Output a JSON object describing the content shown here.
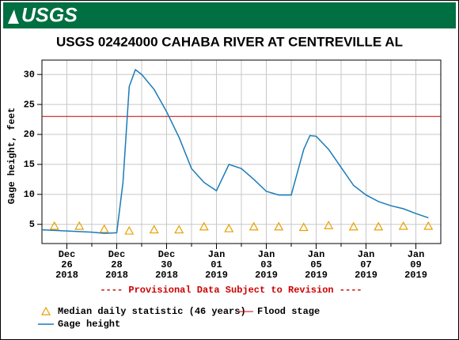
{
  "logo": "USGS",
  "chart_data": {
    "type": "line",
    "title": "USGS 02424000 CAHABA RIVER AT CENTREVILLE AL",
    "y_label": "Gage height, feet",
    "annotation": "---- Provisional Data Subject to Revision ----",
    "xlim": [
      "2018-12-25",
      "2019-01-10"
    ],
    "ylim": [
      1.8,
      32.4
    ],
    "yticks": [
      5,
      10,
      15,
      20,
      25,
      30
    ],
    "xticks": [
      {
        "value": "2018-12-26",
        "label": [
          "Dec",
          "26",
          "2018"
        ]
      },
      {
        "value": "2018-12-28",
        "label": [
          "Dec",
          "28",
          "2018"
        ]
      },
      {
        "value": "2018-12-30",
        "label": [
          "Dec",
          "30",
          "2018"
        ]
      },
      {
        "value": "2019-01-01",
        "label": [
          "Jan",
          "01",
          "2019"
        ]
      },
      {
        "value": "2019-01-03",
        "label": [
          "Jan",
          "03",
          "2019"
        ]
      },
      {
        "value": "2019-01-05",
        "label": [
          "Jan",
          "05",
          "2019"
        ]
      },
      {
        "value": "2019-01-07",
        "label": [
          "Jan",
          "07",
          "2019"
        ]
      },
      {
        "value": "2019-01-09",
        "label": [
          "Jan",
          "09",
          "2019"
        ]
      }
    ],
    "x_minor_grid": [
      "2018-12-27",
      "2018-12-29",
      "2018-12-31",
      "2019-01-02",
      "2019-01-04",
      "2019-01-06",
      "2019-01-08"
    ],
    "grid": true,
    "series": [
      {
        "name": "Median daily statistic (46 years)",
        "type": "scatter",
        "marker": "triangle",
        "color": "#e8a000",
        "x": [
          "2018-12-25 12:00",
          "2018-12-26 12:00",
          "2018-12-27 12:00",
          "2018-12-28 12:00",
          "2018-12-29 12:00",
          "2018-12-30 12:00",
          "2018-12-31 12:00",
          "2019-01-01 12:00",
          "2019-01-02 12:00",
          "2019-01-03 12:00",
          "2019-01-04 12:00",
          "2019-01-05 12:00",
          "2019-01-06 12:00",
          "2019-01-07 12:00",
          "2019-01-08 12:00",
          "2019-01-09 12:00"
        ],
        "values": [
          4.7,
          4.7,
          4.2,
          3.9,
          4.1,
          4.1,
          4.6,
          4.3,
          4.6,
          4.6,
          4.5,
          4.8,
          4.6,
          4.6,
          4.7,
          4.7
        ]
      },
      {
        "name": "Flood stage",
        "type": "hline",
        "color": "#cc0000",
        "values": [
          23
        ]
      },
      {
        "name": "Gage height",
        "type": "line",
        "color": "#1a7bb9",
        "x": [
          "2018-12-25 00:00",
          "2018-12-26 00:00",
          "2018-12-27 00:00",
          "2018-12-27 12:00",
          "2018-12-28 00:00",
          "2018-12-28 06:00",
          "2018-12-28 12:00",
          "2018-12-28 18:00",
          "2018-12-29 00:00",
          "2018-12-29 12:00",
          "2018-12-30 00:00",
          "2018-12-30 12:00",
          "2018-12-31 00:00",
          "2018-12-31 12:00",
          "2019-01-01 00:00",
          "2019-01-01 12:00",
          "2019-01-02 00:00",
          "2019-01-02 12:00",
          "2019-01-03 00:00",
          "2019-01-03 12:00",
          "2019-01-04 00:00",
          "2019-01-04 12:00",
          "2019-01-04 18:00",
          "2019-01-05 00:00",
          "2019-01-05 12:00",
          "2019-01-06 00:00",
          "2019-01-06 12:00",
          "2019-01-07 00:00",
          "2019-01-07 12:00",
          "2019-01-08 00:00",
          "2019-01-08 12:00",
          "2019-01-09 00:00",
          "2019-01-09 12:00"
        ],
        "values": [
          4.1,
          3.9,
          3.7,
          3.5,
          3.6,
          12,
          28,
          30.8,
          30.0,
          27.5,
          23.8,
          19.5,
          14.3,
          12,
          10.6,
          15.0,
          14.3,
          12.5,
          10.5,
          9.9,
          9.9,
          17.5,
          19.8,
          19.7,
          17.5,
          14.5,
          11.5,
          9.9,
          8.8,
          8.1,
          7.6,
          6.8,
          6.1
        ]
      }
    ]
  }
}
